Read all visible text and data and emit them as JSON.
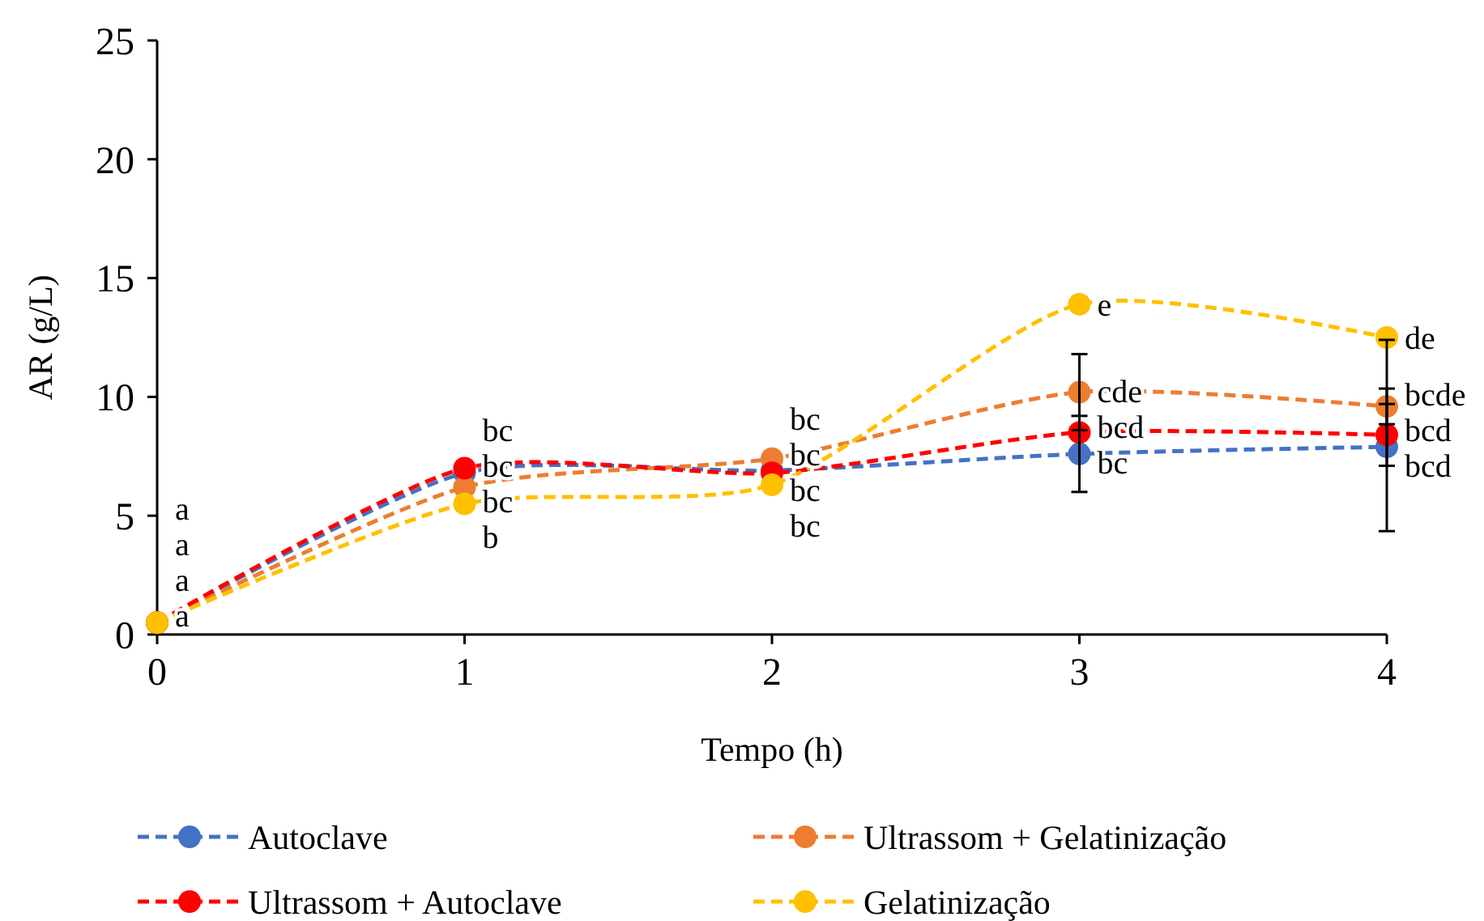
{
  "chart_data": {
    "type": "line",
    "xlabel": "Tempo (h)",
    "ylabel": "AR (g/L)",
    "x": [
      0,
      1,
      2,
      3,
      4
    ],
    "xlim": [
      0,
      4
    ],
    "xticks": [
      0,
      1,
      2,
      3,
      4
    ],
    "ylim": [
      0,
      25
    ],
    "yticks": [
      0,
      5,
      10,
      15,
      20,
      25
    ],
    "grid": false,
    "legend": "bottom",
    "marker": "circle",
    "line_style": "dashed",
    "series": [
      {
        "name": "Autoclave",
        "color": "#4472c4",
        "values": [
          0.5,
          6.8,
          6.9,
          7.6,
          7.9
        ],
        "errors": [
          null,
          null,
          null,
          [
            6.0,
            9.2
          ],
          [
            4.35,
            12.4
          ]
        ],
        "value_labels": [
          "a",
          "bc",
          "bc",
          "bc",
          "bcd"
        ]
      },
      {
        "name": "Ultrassom + Gelatinização",
        "color": "#ed7d31",
        "values": [
          0.5,
          6.2,
          7.4,
          10.2,
          9.6
        ],
        "errors": [
          null,
          null,
          null,
          [
            8.6,
            11.8
          ],
          [
            8.85,
            10.35
          ]
        ],
        "value_labels": [
          "a",
          "bc",
          "bc",
          "cde",
          "bcde"
        ]
      },
      {
        "name": "Ultrassom + Autoclave",
        "color": "#ff0000",
        "values": [
          0.5,
          7.0,
          6.8,
          8.5,
          8.4
        ],
        "errors": [
          null,
          null,
          null,
          null,
          [
            7.1,
            9.7
          ]
        ],
        "value_labels": [
          "a",
          "bc",
          "bc",
          "bcd",
          "bcd"
        ]
      },
      {
        "name": "Gelatinização",
        "color": "#ffc000",
        "values": [
          0.5,
          5.5,
          6.3,
          13.9,
          12.5
        ],
        "value_labels": [
          "a",
          "b",
          "bc",
          "e",
          "de"
        ]
      }
    ]
  }
}
